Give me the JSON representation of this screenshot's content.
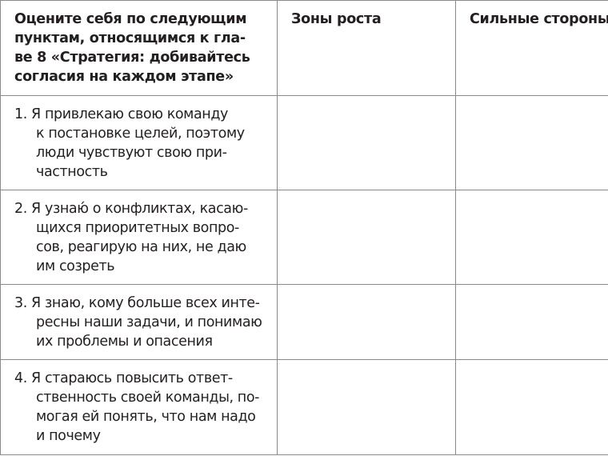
{
  "header": {
    "col1_lines": [
      "Оцените себя по следующим",
      "пунктам, относящимся к гла-",
      "ве 8 «Стратегия: добивайтесь",
      "согласия на каждом этапе»"
    ],
    "col2": "Зоны роста",
    "col3": "Сильные стороны"
  },
  "rows": [
    {
      "lines": [
        "1. Я привлекаю свою команду",
        "к постановке целей, поэтому",
        "люди чувствуют свою при-",
        "частность"
      ]
    },
    {
      "lines": [
        "2. Я узнаю́ о конфликтах, касаю-",
        "щихся приоритетных вопро-",
        "сов, реагирую на них, не даю",
        "им созреть"
      ]
    },
    {
      "lines": [
        "3. Я знаю, кому больше всех инте-",
        "ресны наши задачи, и понимаю",
        "их проблемы и опасения"
      ]
    },
    {
      "lines": [
        "4. Я стараюсь повысить ответ-",
        "ственность своей команды, по-",
        "могая ей понять, что нам надо",
        "и почему"
      ]
    }
  ]
}
